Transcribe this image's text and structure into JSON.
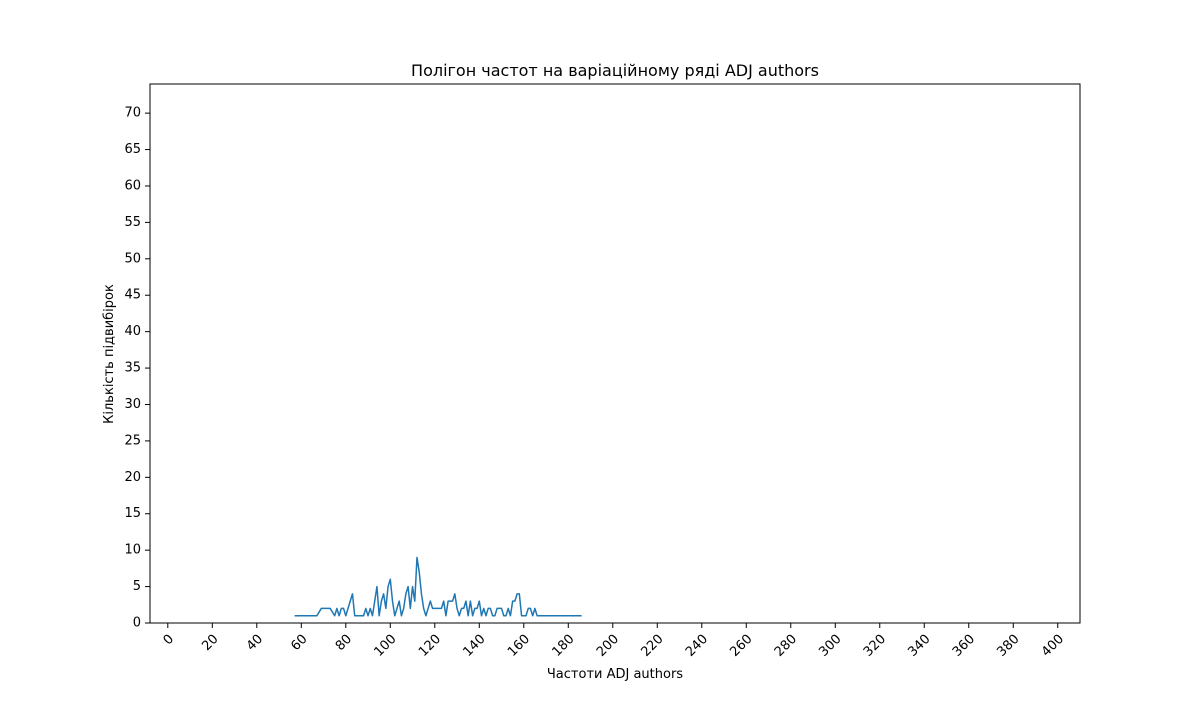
{
  "chart_data": {
    "type": "line",
    "title": "Полігон частот на варіаційному ряді ADJ authors",
    "xlabel": "Частоти ADJ authors",
    "ylabel": "Кількість підвибірок",
    "xlim": [
      -8,
      410
    ],
    "ylim": [
      0,
      74
    ],
    "xticks": [
      0,
      20,
      40,
      60,
      80,
      100,
      120,
      140,
      160,
      180,
      200,
      220,
      240,
      260,
      280,
      300,
      320,
      340,
      360,
      380,
      400
    ],
    "yticks": [
      0,
      5,
      10,
      15,
      20,
      25,
      30,
      35,
      40,
      45,
      50,
      55,
      60,
      65,
      70
    ],
    "grid": false,
    "colors": {
      "line": "#1f77b4"
    },
    "series": [
      {
        "x": [
          57,
          59,
          61,
          63,
          65,
          67,
          69,
          71,
          73,
          75,
          76,
          77,
          78,
          79,
          80,
          81,
          82,
          83,
          84,
          85,
          86,
          87,
          88,
          89,
          90,
          91,
          92,
          93,
          94,
          95,
          96,
          97,
          98,
          99,
          100,
          101,
          102,
          103,
          104,
          105,
          106,
          107,
          108,
          109,
          110,
          111,
          112,
          113,
          114,
          115,
          116,
          117,
          118,
          119,
          120,
          121,
          122,
          123,
          124,
          125,
          126,
          127,
          128,
          129,
          130,
          131,
          132,
          133,
          134,
          135,
          136,
          137,
          138,
          139,
          140,
          141,
          142,
          143,
          144,
          145,
          146,
          147,
          148,
          149,
          150,
          151,
          152,
          153,
          154,
          155,
          156,
          157,
          158,
          159,
          160,
          161,
          162,
          163,
          164,
          165,
          166,
          167,
          168,
          170,
          172,
          174,
          176,
          178,
          180,
          182,
          184,
          186
        ],
        "values": [
          1,
          1,
          1,
          1,
          1,
          1,
          2,
          2,
          2,
          1,
          2,
          1,
          2,
          2,
          1,
          2,
          3,
          4,
          1,
          1,
          1,
          1,
          1,
          2,
          1,
          2,
          1,
          3,
          5,
          1,
          3,
          4,
          2,
          5,
          6,
          3,
          1,
          2,
          3,
          1,
          2,
          4,
          5,
          2,
          5,
          3,
          9,
          7,
          4,
          2,
          1,
          2,
          3,
          2,
          2,
          2,
          2,
          2,
          3,
          1,
          3,
          3,
          3,
          4,
          2,
          1,
          2,
          2,
          3,
          1,
          3,
          1,
          2,
          2,
          3,
          1,
          2,
          1,
          2,
          2,
          1,
          1,
          2,
          2,
          2,
          1,
          1,
          2,
          1,
          3,
          3,
          4,
          4,
          1,
          1,
          1,
          2,
          2,
          1,
          2,
          1,
          1,
          1,
          1,
          1,
          1,
          1,
          1,
          1,
          1,
          1,
          1
        ]
      }
    ]
  }
}
